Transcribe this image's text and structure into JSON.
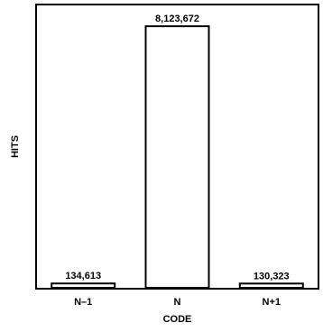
{
  "chart_data": {
    "type": "bar",
    "categories": [
      "N–1",
      "N",
      "N+1"
    ],
    "values": [
      134613,
      8123672,
      130323
    ],
    "value_labels": [
      "134,613",
      "8,123,672",
      "130,323"
    ],
    "title": "",
    "xlabel": "CODE",
    "ylabel": "HITS",
    "ylim": [
      0,
      8800000
    ],
    "grid": false,
    "legend": "none",
    "colors": {
      "bar_fill": "#ffffff",
      "bar_stroke": "#000000",
      "frame": "#000000"
    }
  }
}
